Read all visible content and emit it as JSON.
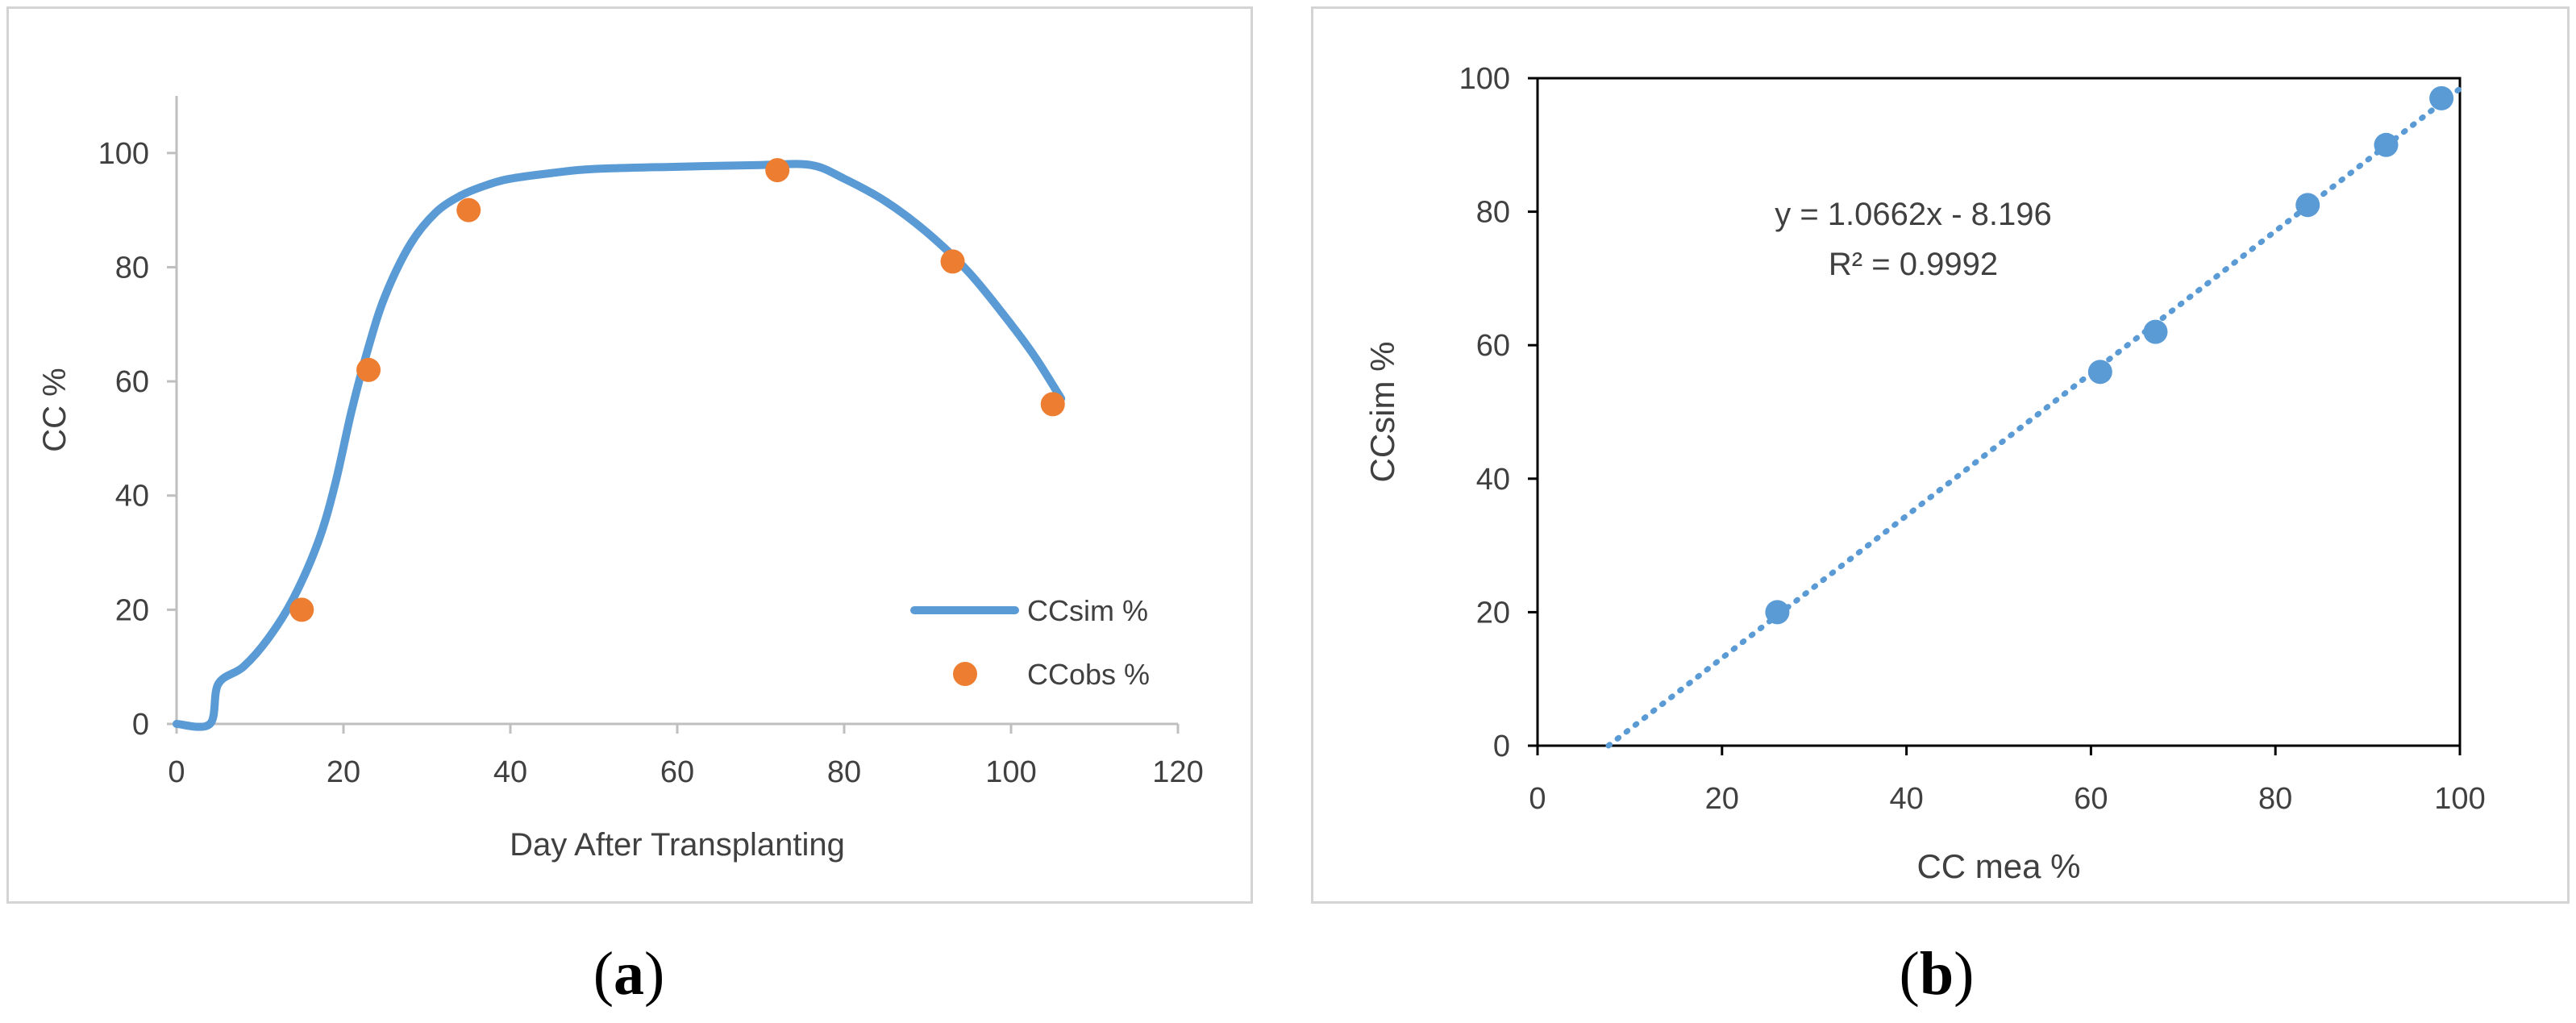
{
  "chart_data": [
    {
      "type": "line",
      "panel_label": "a",
      "xlabel": "Day After Transplanting",
      "ylabel": "CC %",
      "xlim": [
        0,
        120
      ],
      "ylim": [
        0,
        110
      ],
      "xticks": [
        0,
        20,
        40,
        60,
        80,
        100,
        120
      ],
      "yticks": [
        0,
        20,
        40,
        60,
        80,
        100
      ],
      "grid": false,
      "legend_position": "bottom-right",
      "series": [
        {
          "name": "CCsim %",
          "kind": "line",
          "color": "#5b9bd5",
          "x": [
            0,
            4,
            5,
            8,
            11,
            14,
            17,
            19,
            21,
            23,
            25,
            28,
            31,
            34,
            37,
            40,
            45,
            50,
            60,
            70,
            76,
            80,
            85,
            90,
            95,
            100,
            103,
            106
          ],
          "y": [
            0,
            0,
            7,
            10,
            15,
            22,
            32,
            42,
            55,
            66,
            75,
            84,
            89.5,
            92.5,
            94.3,
            95.5,
            96.5,
            97.2,
            97.6,
            97.9,
            97.9,
            95.5,
            91.5,
            86,
            79,
            70,
            64,
            57
          ]
        },
        {
          "name": "CCobs %",
          "kind": "scatter",
          "color": "#ed7d31",
          "x": [
            15,
            23,
            35,
            72,
            93,
            105
          ],
          "y": [
            20,
            62,
            90,
            97,
            81,
            56
          ]
        }
      ]
    },
    {
      "type": "scatter",
      "panel_label": "b",
      "xlabel": "CC mea %",
      "ylabel": "CCsim %",
      "xlim": [
        0,
        100
      ],
      "ylim": [
        0,
        100
      ],
      "xticks": [
        0,
        20,
        40,
        60,
        80,
        100
      ],
      "yticks": [
        0,
        20,
        40,
        60,
        80,
        100
      ],
      "grid": false,
      "color": "#5b9bd5",
      "points": [
        {
          "x": 26,
          "y": 20
        },
        {
          "x": 61,
          "y": 56
        },
        {
          "x": 67,
          "y": 62
        },
        {
          "x": 83.5,
          "y": 81
        },
        {
          "x": 92,
          "y": 90
        },
        {
          "x": 98,
          "y": 97
        }
      ],
      "trendline": {
        "slope": 1.0662,
        "intercept": -8.196,
        "style": "dotted",
        "x_range": [
          7.69,
          100
        ]
      },
      "equation_label": "y = 1.0662x - 8.196",
      "r2_label": "R² = 0.9992"
    }
  ],
  "captions": {
    "a": "a",
    "b": "b"
  }
}
